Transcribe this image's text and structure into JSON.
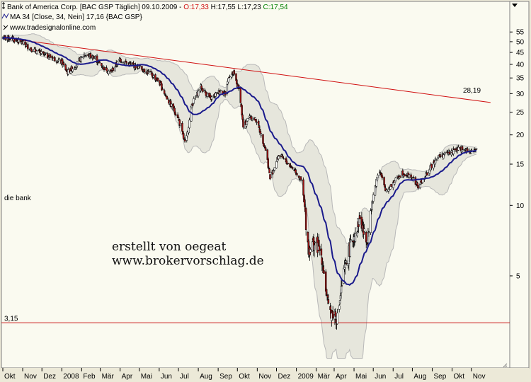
{
  "header": {
    "line1_prefix": "Bank of America Corp. [BAC GSP  Täglich] 09.10.2009 - ",
    "open": "O:17,33",
    "mid": " H:17,55 L:17,23 ",
    "close": "C:17,54",
    "line2_prefix": "MA 34 [Close, 34, Nein] ",
    "ma_value": "17,16",
    "line2_suffix": " {BAC GSP}",
    "source": "www.tradesignalonline.com"
  },
  "labels": {
    "series_label": "die bank",
    "trend_value": "28,19",
    "support_value": "3,15",
    "watermark_line1": "erstellt von oegeat",
    "watermark_line2": "www.brokervorschlag.de"
  },
  "colors": {
    "panel_bg": "#fafaf0",
    "frame_bg": "#ece9d8",
    "candle_up": "#ffffff",
    "candle_down": "#a01515",
    "ma": "#1a1a8c",
    "band": "#b8b8b8",
    "trendline": "#d01010",
    "support": "#c81010",
    "accent_blue": "#0000b0",
    "close_green": "#008000"
  },
  "chart_data": {
    "type": "candlestick",
    "title": "Bank of America Corp. [BAC GSP  Täglich] 09.10.2009",
    "yscale": "log",
    "ylim": [
      2.2,
      62
    ],
    "y_ticks": [
      5,
      10,
      15,
      20,
      25,
      30,
      35,
      40,
      45,
      50,
      55
    ],
    "x_ticks": [
      "Okt",
      "Nov",
      "Dez",
      "2008",
      "Feb",
      "Mär",
      "Apr",
      "Mai",
      "Jun",
      "Jul",
      "Aug",
      "Sep",
      "Okt",
      "Nov",
      "Dez",
      "2009",
      "Mär",
      "Apr",
      "Mai",
      "Jun",
      "Jul",
      "Aug",
      "Sep",
      "Okt",
      "Nov"
    ],
    "x_start": "2007-10-01",
    "x_end": "2009-11-30",
    "last_ohlc": {
      "open": 17.33,
      "high": 17.55,
      "low": 17.23,
      "close": 17.54
    },
    "close_keyframes": [
      [
        "2007-10-01",
        52.0
      ],
      [
        "2007-10-15",
        51.5
      ],
      [
        "2007-10-31",
        49.5
      ],
      [
        "2007-11-15",
        46.5
      ],
      [
        "2007-11-30",
        44.5
      ],
      [
        "2007-12-15",
        43.0
      ],
      [
        "2007-12-31",
        41.0
      ],
      [
        "2008-01-10",
        37.0
      ],
      [
        "2008-01-22",
        39.5
      ],
      [
        "2008-02-05",
        44.0
      ],
      [
        "2008-02-20",
        43.0
      ],
      [
        "2008-03-05",
        39.0
      ],
      [
        "2008-03-17",
        37.0
      ],
      [
        "2008-04-01",
        42.0
      ],
      [
        "2008-04-15",
        40.0
      ],
      [
        "2008-04-30",
        39.0
      ],
      [
        "2008-05-15",
        37.0
      ],
      [
        "2008-05-31",
        34.0
      ],
      [
        "2008-06-15",
        28.0
      ],
      [
        "2008-06-30",
        24.0
      ],
      [
        "2008-07-12",
        18.0
      ],
      [
        "2008-07-22",
        27.0
      ],
      [
        "2008-08-05",
        32.0
      ],
      [
        "2008-08-20",
        28.5
      ],
      [
        "2008-09-05",
        31.0
      ],
      [
        "2008-09-12",
        30.0
      ],
      [
        "2008-09-18",
        36.0
      ],
      [
        "2008-09-25",
        36.5
      ],
      [
        "2008-10-05",
        30.0
      ],
      [
        "2008-10-10",
        21.5
      ],
      [
        "2008-10-20",
        24.0
      ],
      [
        "2008-10-31",
        23.0
      ],
      [
        "2008-11-15",
        17.0
      ],
      [
        "2008-11-21",
        13.0
      ],
      [
        "2008-12-05",
        16.5
      ],
      [
        "2008-12-20",
        15.0
      ],
      [
        "2008-12-31",
        14.0
      ],
      [
        "2009-01-10",
        12.5
      ],
      [
        "2009-01-20",
        6.5
      ],
      [
        "2009-01-31",
        7.0
      ],
      [
        "2009-02-10",
        6.0
      ],
      [
        "2009-02-20",
        3.6
      ],
      [
        "2009-03-06",
        3.3
      ],
      [
        "2009-03-15",
        5.0
      ],
      [
        "2009-03-25",
        6.5
      ],
      [
        "2009-04-10",
        8.8
      ],
      [
        "2009-04-20",
        7.0
      ],
      [
        "2009-05-01",
        11.0
      ],
      [
        "2009-05-10",
        14.5
      ],
      [
        "2009-05-20",
        11.5
      ],
      [
        "2009-06-01",
        12.5
      ],
      [
        "2009-06-15",
        13.8
      ],
      [
        "2009-06-30",
        13.2
      ],
      [
        "2009-07-10",
        12.0
      ],
      [
        "2009-07-25",
        13.8
      ],
      [
        "2009-08-07",
        16.0
      ],
      [
        "2009-08-20",
        16.5
      ],
      [
        "2009-09-01",
        17.0
      ],
      [
        "2009-09-15",
        17.5
      ],
      [
        "2009-09-30",
        16.8
      ],
      [
        "2009-10-09",
        17.54
      ]
    ],
    "ma_period": 34,
    "bands": "bollinger-style envelope",
    "trendline": {
      "start": [
        "2007-10-01",
        52.0
      ],
      "end": [
        "2009-10-31",
        27.5
      ],
      "label": "28,19"
    },
    "support_level": 3.15
  }
}
